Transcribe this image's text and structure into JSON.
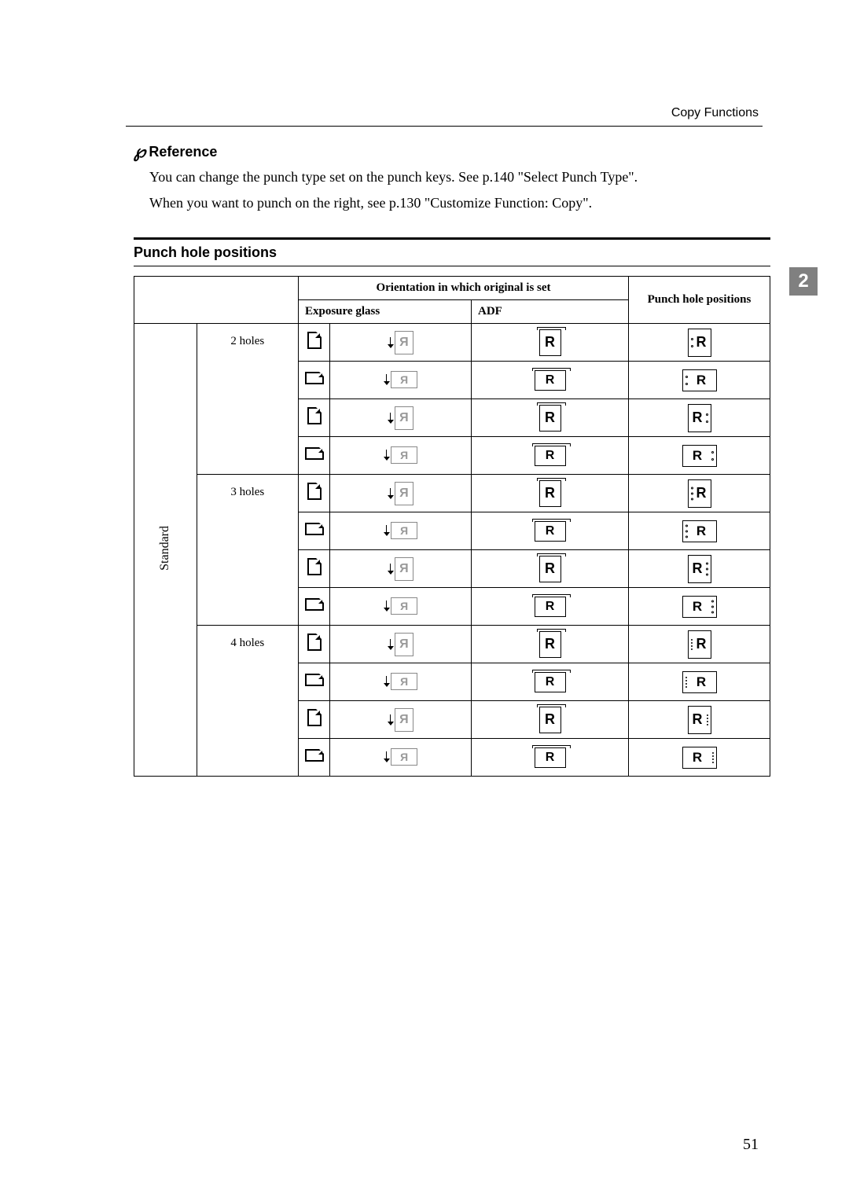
{
  "header": {
    "section": "Copy Functions"
  },
  "chapter_tab": "2",
  "reference": {
    "heading": "Reference",
    "line1": "You can change the punch type set on the punch keys. See p.140 \"Select Punch Type\".",
    "line2": "When you want to punch on the right, see p.130 \"Customize Function: Copy\"."
  },
  "section_title": "Punch hole positions",
  "table": {
    "header_orientation": "Orientation in which original is set",
    "header_punch": "Punch hole positions",
    "header_exposure": "Exposure glass",
    "header_adf": "ADF",
    "standard_label": "Standard",
    "hole_groups": [
      {
        "label": "2 holes",
        "hole_count": 2
      },
      {
        "label": "3 holes",
        "hole_count": 3
      },
      {
        "label": "4 holes",
        "hole_count": 4
      }
    ],
    "row_variants": [
      {
        "orient": "portrait",
        "page_shape": "portrait",
        "punch_side": "left"
      },
      {
        "orient": "landscape",
        "page_shape": "landscape",
        "punch_side": "left"
      },
      {
        "orient": "portrait",
        "page_shape": "portrait",
        "punch_side": "right"
      },
      {
        "orient": "landscape",
        "page_shape": "landscape",
        "punch_side": "right"
      }
    ],
    "glyph_R": "R",
    "colors": {
      "border": "#000000",
      "light": "#999999",
      "background": "#ffffff"
    }
  },
  "page_number": "51"
}
